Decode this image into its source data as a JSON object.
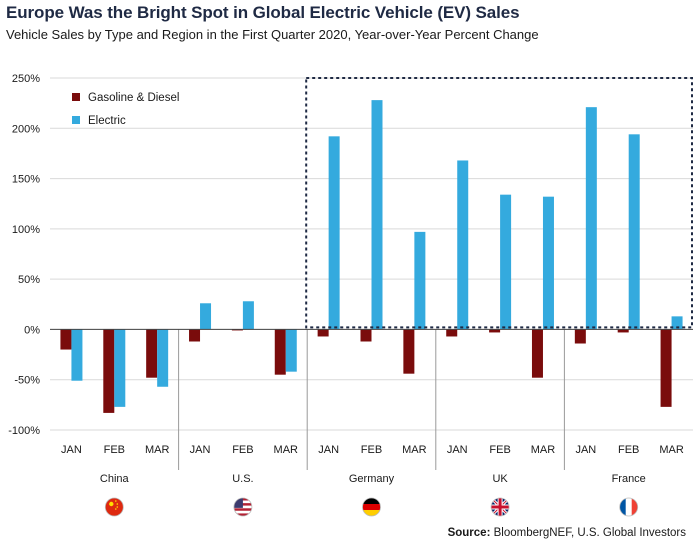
{
  "title": "Europe Was the Bright Spot in Global Electric Vehicle (EV) Sales",
  "subtitle": "Vehicle Sales by Type and Region in the First Quarter 2020, Year-over-Year Percent Change",
  "source_label": "Source:",
  "source_text": " BloombergNEF, U.S. Global Investors",
  "colors": {
    "gasoline": "#7a0c0c",
    "electric": "#34aade",
    "grid": "#d9d9d9",
    "highlight_box": "#1f2a44"
  },
  "chart_data": {
    "type": "bar",
    "title": "Europe Was the Bright Spot in Global Electric Vehicle (EV) Sales",
    "subtitle": "Vehicle Sales by Type and Region in the First Quarter 2020, Year-over-Year Percent Change",
    "ylim": [
      -100,
      250
    ],
    "yticks": [
      -100,
      -50,
      0,
      50,
      100,
      150,
      200,
      250
    ],
    "ytick_labels": [
      "-100%",
      "-50%",
      "0%",
      "50%",
      "100%",
      "150%",
      "200%",
      "250%"
    ],
    "grid": true,
    "legend": "top-left",
    "groups": [
      {
        "region": "China",
        "flag": "china-flag",
        "months": [
          "JAN",
          "FEB",
          "MAR"
        ]
      },
      {
        "region": "U.S.",
        "flag": "us-flag",
        "months": [
          "JAN",
          "FEB",
          "MAR"
        ]
      },
      {
        "region": "Germany",
        "flag": "germany-flag",
        "months": [
          "JAN",
          "FEB",
          "MAR"
        ]
      },
      {
        "region": "UK",
        "flag": "uk-flag",
        "months": [
          "JAN",
          "FEB",
          "MAR"
        ]
      },
      {
        "region": "France",
        "flag": "france-flag",
        "months": [
          "JAN",
          "FEB",
          "MAR"
        ]
      }
    ],
    "series": [
      {
        "name": "Gasoline & Diesel",
        "values": [
          -20,
          -83,
          -48,
          -12,
          -1,
          -45,
          -7,
          -12,
          -44,
          -7,
          -3,
          -48,
          -14,
          -3,
          -77
        ]
      },
      {
        "name": "Electric",
        "values": [
          -51,
          -77,
          -57,
          26,
          28,
          -42,
          192,
          228,
          97,
          168,
          134,
          132,
          221,
          194,
          13
        ]
      }
    ],
    "highlighted_regions": [
      "Germany",
      "UK",
      "France"
    ]
  }
}
